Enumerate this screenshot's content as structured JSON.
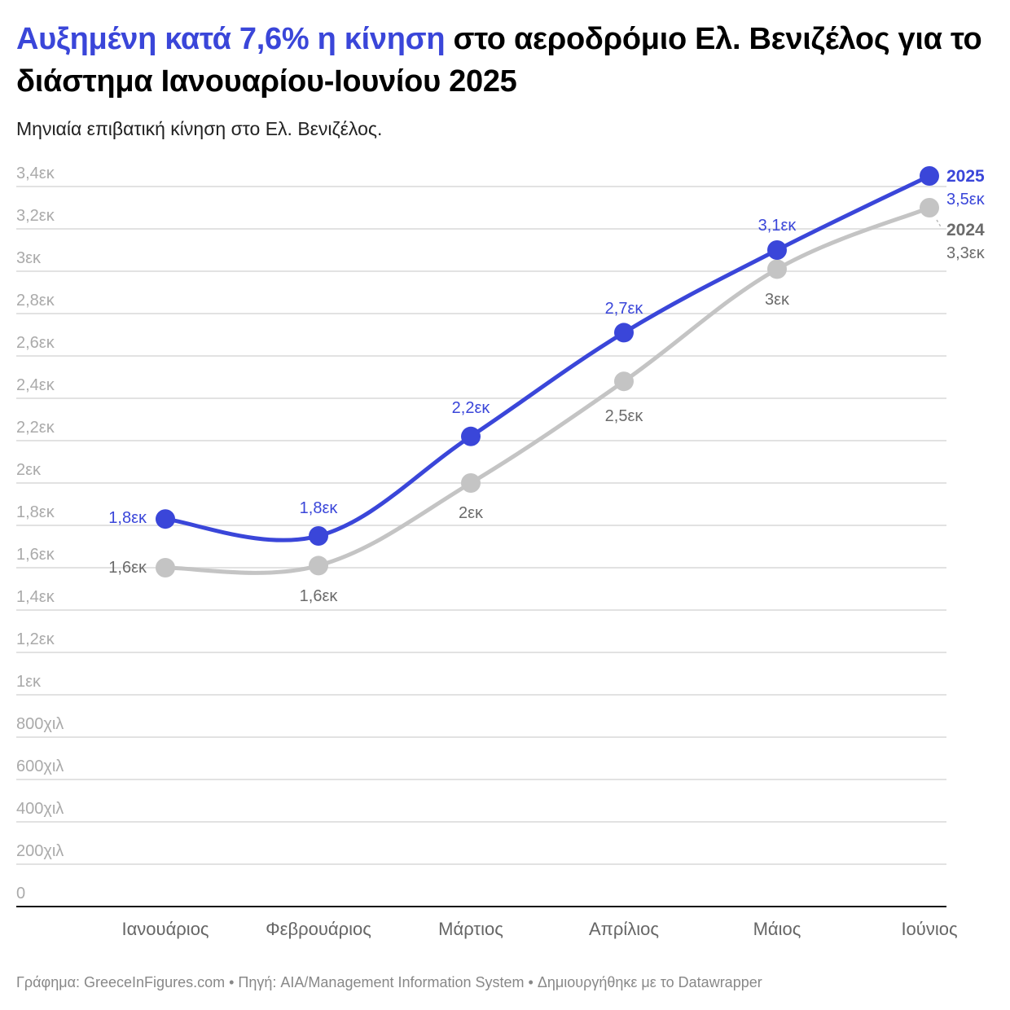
{
  "header": {
    "title_highlight": "Αυξημένη κατά 7,6% η κίνηση",
    "title_rest": " στο αεροδρόμιο Ελ. Βενιζέλος για το διάστημα Ιανουαρίου-Ιουνίου 2025",
    "subtitle": "Μηνιαία επιβατική κίνηση στο Ελ. Βενιζέλος."
  },
  "colors": {
    "series_2025": "#3a46d9",
    "series_2024": "#c4c4c4",
    "grid": "#e2e2e2",
    "axis": "#111111"
  },
  "chart_data": {
    "type": "line",
    "title": "Αυξημένη κατά 7,6% η κίνηση στο αεροδρόμιο Ελ. Βενιζέλος για το διάστημα Ιανουαρίου-Ιουνίου 2025",
    "subtitle": "Μηνιαία επιβατική κίνηση στο Ελ. Βενιζέλος.",
    "xlabel": "",
    "ylabel": "",
    "categories": [
      "Ιανουάριος",
      "Φεβρουάριος",
      "Μάρτιος",
      "Απρίλιος",
      "Μάιος",
      "Ιούνιος"
    ],
    "series": [
      {
        "name": "2025",
        "values": [
          1830000,
          1750000,
          2220000,
          2710000,
          3100000,
          3450000
        ],
        "labels": [
          "1,8εκ",
          "1,8εκ",
          "2,2εκ",
          "2,7εκ",
          "3,1εκ",
          "3,5εκ"
        ]
      },
      {
        "name": "2024",
        "values": [
          1600000,
          1610000,
          2000000,
          2480000,
          3010000,
          3300000
        ],
        "labels": [
          "1,6εκ",
          "1,6εκ",
          "2εκ",
          "2,5εκ",
          "3εκ",
          "3,3εκ"
        ]
      }
    ],
    "ylim": [
      0,
      3400000
    ],
    "yticks": [
      "0",
      "200χιλ",
      "400χιλ",
      "600χιλ",
      "800χιλ",
      "1εκ",
      "1,2εκ",
      "1,4εκ",
      "1,6εκ",
      "1,8εκ",
      "2εκ",
      "2,2εκ",
      "2,4εκ",
      "2,6εκ",
      "2,8εκ",
      "3εκ",
      "3,2εκ",
      "3,4εκ"
    ],
    "grid": true,
    "legend_position": "inline-right"
  },
  "legend": {
    "s2025": "2025",
    "s2025_last": "3,5εκ",
    "s2024": "2024",
    "s2024_last": "3,3εκ"
  },
  "footer": "Γράφημα: GreeceInFigures.com • Πηγή: AIA/Management Information System • Δημιουργήθηκε με το Datawrapper"
}
